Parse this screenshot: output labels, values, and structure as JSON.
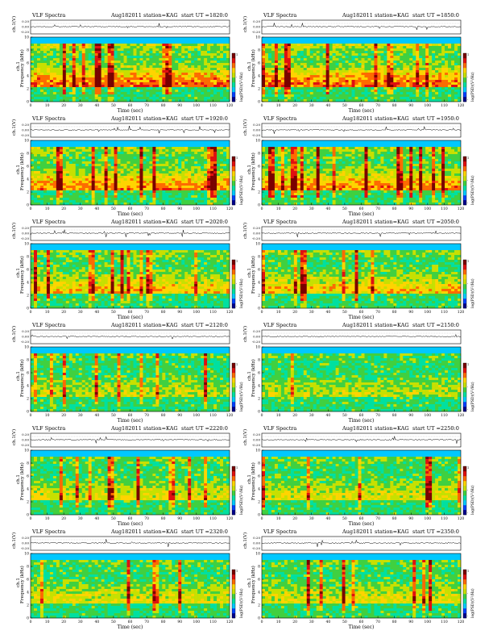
{
  "common": {
    "header_title": "VLF Spectra",
    "date": "Aug182011",
    "station": "station=KAG",
    "start_label": "start  UT =",
    "waveform_ylabel": "ch.1(V)",
    "spec_ylabel_channel": "ch.1",
    "spec_ylabel": "Frequency  (kHz)",
    "xlabel": "Time  (sec)",
    "colorbar_label": "log(PSD)(V²/Hz)",
    "waveform_ticks": [
      "0.20",
      "0.00",
      "-0.20"
    ],
    "freq_ticks": [
      "0",
      "2",
      "4",
      "6",
      "8",
      "10"
    ],
    "time_ticks": [
      "0",
      "10",
      "20",
      "30",
      "40",
      "50",
      "60",
      "70",
      "80",
      "90",
      "100",
      "110",
      "120"
    ],
    "colorbar_ticks": [
      "1",
      "-",
      "-"
    ]
  },
  "panels": [
    {
      "start": "1820:0"
    },
    {
      "start": "1850:0"
    },
    {
      "start": "1920:0"
    },
    {
      "start": "1950:0"
    },
    {
      "start": "2020:0"
    },
    {
      "start": "2050:0"
    },
    {
      "start": "2120:0"
    },
    {
      "start": "2150:0"
    },
    {
      "start": "2220:0"
    },
    {
      "start": "2250:0"
    },
    {
      "start": "2320:0"
    },
    {
      "start": "2350:0"
    }
  ],
  "chart_data": {
    "type": "heatmap",
    "description_units": {
      "x": "sec",
      "y": "kHz"
    },
    "xlim": [
      0,
      120
    ],
    "ylim": [
      0,
      10
    ],
    "waveform_ylim": [
      -0.2,
      0.2
    ],
    "colormap": [
      "#00008b",
      "#0040ff",
      "#00c8ff",
      "#00e0a0",
      "#40d040",
      "#c8e000",
      "#ffd400",
      "#ff6a00",
      "#e01010",
      "#7a0000"
    ],
    "activity_level": [
      0.95,
      0.95,
      0.85,
      0.85,
      0.7,
      0.7,
      0.45,
      0.45,
      0.55,
      0.55,
      0.55,
      0.55
    ]
  }
}
